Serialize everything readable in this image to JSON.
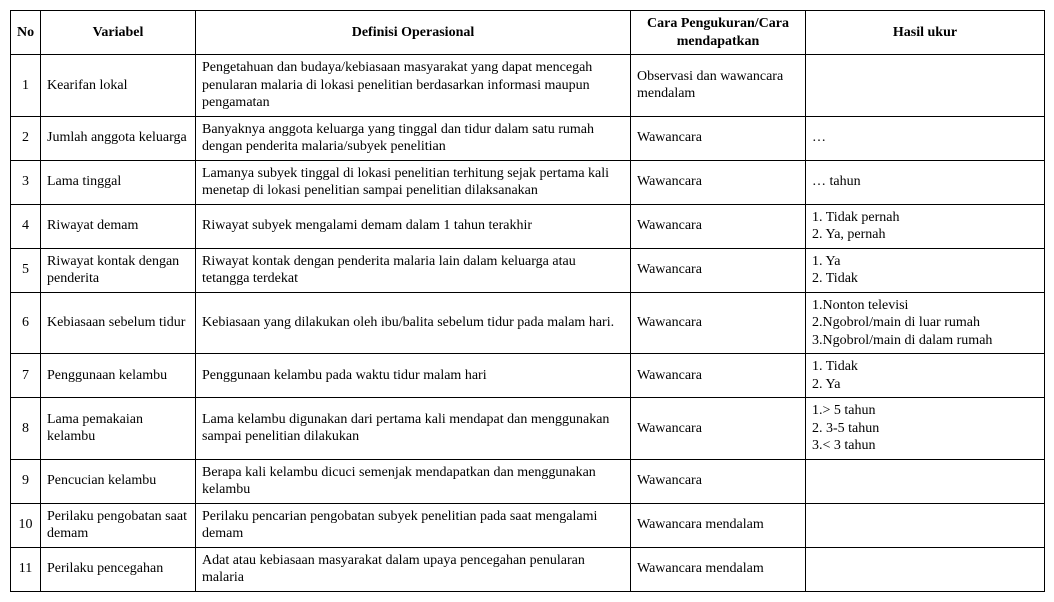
{
  "columns": {
    "no": "No",
    "variabel": "Variabel",
    "definisi": "Definisi Operasional",
    "cara": "Cara Pengukuran/Cara mendapatkan",
    "hasil": "Hasil ukur"
  },
  "rows": [
    {
      "no": "1",
      "variabel": "Kearifan lokal",
      "definisi": "Pengetahuan dan budaya/kebiasaan masyarakat yang dapat mencegah penularan malaria di lokasi penelitian berdasarkan informasi maupun pengamatan",
      "cara": "Observasi dan wawancara mendalam",
      "hasil": ""
    },
    {
      "no": "2",
      "variabel": "Jumlah anggota keluarga",
      "definisi": "Banyaknya anggota keluarga yang tinggal dan tidur dalam satu rumah dengan penderita malaria/subyek penelitian",
      "cara": "Wawancara",
      "hasil": "…"
    },
    {
      "no": "3",
      "variabel": "Lama tinggal",
      "definisi": "Lamanya subyek tinggal di lokasi penelitian terhitung sejak pertama kali menetap di lokasi penelitian sampai penelitian dilaksanakan",
      "cara": "Wawancara",
      "hasil": "… tahun"
    },
    {
      "no": "4",
      "variabel": "Riwayat demam",
      "definisi": "Riwayat subyek mengalami demam dalam 1 tahun terakhir",
      "cara": "Wawancara",
      "hasil": "1. Tidak pernah\n2. Ya, pernah"
    },
    {
      "no": "5",
      "variabel": "Riwayat kontak dengan penderita",
      "definisi": "Riwayat kontak dengan penderita malaria lain dalam keluarga atau tetangga terdekat",
      "cara": "Wawancara",
      "hasil": "1. Ya\n2. Tidak"
    },
    {
      "no": "6",
      "variabel": "Kebiasaan sebelum tidur",
      "definisi": "Kebiasaan yang dilakukan oleh ibu/balita sebelum tidur pada malam hari.",
      "cara": "Wawancara",
      "hasil": "1.Nonton televisi\n2.Ngobrol/main di luar rumah\n3.Ngobrol/main di dalam rumah"
    },
    {
      "no": "7",
      "variabel": "Penggunaan kelambu",
      "definisi": "Penggunaan kelambu pada waktu tidur malam hari",
      "cara": "Wawancara",
      "hasil": "1. Tidak\n2. Ya"
    },
    {
      "no": "8",
      "variabel": "Lama pemakaian kelambu",
      "definisi": "Lama kelambu digunakan dari pertama kali mendapat dan menggunakan sampai penelitian dilakukan",
      "cara": "Wawancara",
      "hasil": "1.> 5 tahun\n2. 3-5 tahun\n3.< 3 tahun"
    },
    {
      "no": "9",
      "variabel": "Pencucian kelambu",
      "definisi": "Berapa kali kelambu dicuci semenjak mendapatkan dan menggunakan kelambu",
      "cara": "Wawancara",
      "hasil": ""
    },
    {
      "no": "10",
      "variabel": "Perilaku pengobatan saat demam",
      "definisi": "Perilaku pencarian pengobatan subyek penelitian pada saat mengalami demam",
      "cara": "Wawancara mendalam",
      "hasil": ""
    },
    {
      "no": "11",
      "variabel": "Perilaku pencegahan",
      "definisi": "Adat atau kebiasaan masyarakat dalam upaya pencegahan penularan malaria",
      "cara": "Wawancara mendalam",
      "hasil": ""
    }
  ]
}
